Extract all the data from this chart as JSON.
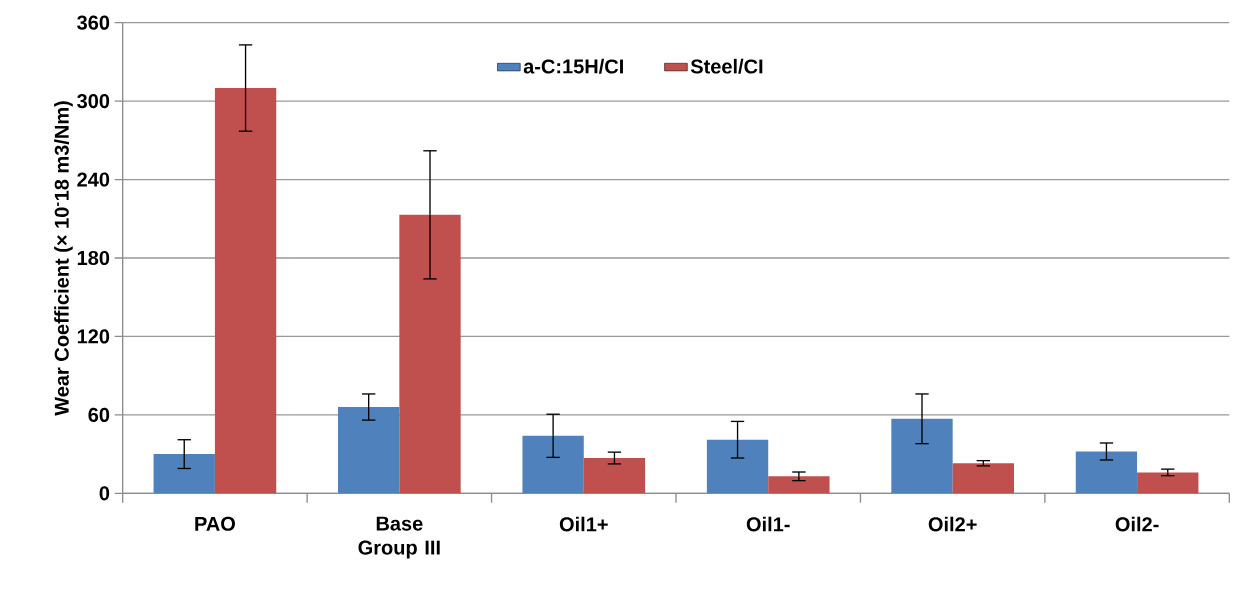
{
  "chart_data": {
    "type": "bar",
    "ylabel": "Wear Coefficient (× 10$^{-}$18 m3/Nm)",
    "categories": [
      "PAO",
      "Base Group III",
      "Oil1+",
      "Oil1-",
      "Oil2+",
      "Oil2-"
    ],
    "series": [
      {
        "name": "a-C:15H/CI",
        "color": "#4f81bd",
        "values": [
          30,
          66,
          44,
          41,
          57,
          32
        ],
        "errors": [
          11,
          10,
          16.5,
          14,
          19,
          6.5
        ]
      },
      {
        "name": "Steel/CI",
        "color": "#c0504d",
        "values": [
          310,
          213,
          27,
          13,
          23,
          16
        ],
        "errors": [
          33,
          49,
          4.5,
          3.3,
          2,
          2.5
        ]
      }
    ],
    "ylim": [
      0,
      360
    ],
    "yticks": [
      0,
      60,
      120,
      180,
      240,
      300,
      360
    ],
    "grid": "y",
    "legend": "top"
  }
}
